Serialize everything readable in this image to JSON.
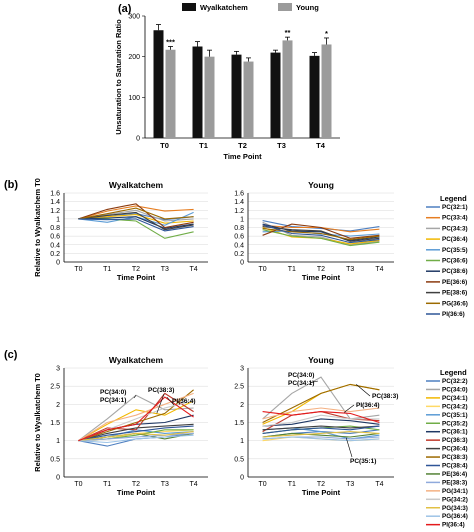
{
  "chart_data": [
    {
      "panel": "(a)",
      "type": "bar",
      "categories": [
        "T0",
        "T1",
        "T2",
        "T3",
        "T4"
      ],
      "xlabel": "Time Point",
      "ylabel": "Unsaturation to Saturation Ratio",
      "ylim": [
        0,
        300
      ],
      "yticks": [
        0,
        100,
        200,
        300
      ],
      "series": [
        {
          "name": "Wyalkatchem",
          "color": "#111111",
          "values": [
            265,
            225,
            205,
            210,
            202
          ],
          "errors": [
            14,
            12,
            8,
            6,
            8
          ]
        },
        {
          "name": "Young",
          "color": "#9b9b9b",
          "values": [
            217,
            200,
            188,
            240,
            230
          ],
          "errors": [
            8,
            16,
            9,
            8,
            16
          ]
        }
      ],
      "significance": [
        "***",
        "",
        "",
        "**",
        "*"
      ]
    },
    {
      "panel": "(b)",
      "type": "line",
      "title_left": "Wyalkatchem",
      "title_right": "Young",
      "categories": [
        "T0",
        "T1",
        "T2",
        "T3",
        "T4"
      ],
      "xlabel": "Time Point",
      "ylabel": "Relative to Wyalkatchem T0",
      "ylim": [
        0,
        1.6
      ],
      "yticks": [
        "0",
        "0.2",
        "0.4",
        "0.6",
        "0.8",
        "1",
        "1.2",
        "1.4",
        "1.6"
      ],
      "legend_title": "Legend",
      "series": [
        {
          "name": "PC(32:1)",
          "color": "#4e7fc0",
          "left": [
            1,
            1.08,
            1.12,
            0.98,
            1.05
          ],
          "right": [
            0.96,
            0.82,
            0.78,
            0.72,
            0.82
          ]
        },
        {
          "name": "PC(33:4)",
          "color": "#e67e22",
          "left": [
            1,
            1.18,
            1.3,
            1.18,
            1.22
          ],
          "right": [
            0.85,
            0.8,
            0.8,
            0.7,
            0.76
          ]
        },
        {
          "name": "PC(34:3)",
          "color": "#a6a6a6",
          "left": [
            1,
            1.1,
            1.2,
            0.95,
            1.0
          ],
          "right": [
            0.92,
            0.62,
            0.58,
            0.4,
            0.48
          ]
        },
        {
          "name": "PC(36:4)",
          "color": "#f2b800",
          "left": [
            1,
            1.05,
            1.1,
            0.9,
            0.95
          ],
          "right": [
            0.8,
            0.58,
            0.55,
            0.42,
            0.5
          ]
        },
        {
          "name": "PC(35:5)",
          "color": "#5b9bd5",
          "left": [
            1,
            0.92,
            1.05,
            0.85,
            1.15
          ],
          "right": [
            0.7,
            0.72,
            0.65,
            0.6,
            0.65
          ]
        },
        {
          "name": "PC(36:6)",
          "color": "#70ad47",
          "left": [
            1,
            1.0,
            0.95,
            0.55,
            0.7
          ],
          "right": [
            0.75,
            0.6,
            0.55,
            0.38,
            0.46
          ]
        },
        {
          "name": "PC(38:6)",
          "color": "#1f3864",
          "left": [
            1,
            1.02,
            1.05,
            0.78,
            0.88
          ],
          "right": [
            0.88,
            0.72,
            0.7,
            0.5,
            0.58
          ]
        },
        {
          "name": "PE(36:6)",
          "color": "#8b3a0f",
          "left": [
            1,
            1.22,
            1.35,
            0.8,
            0.92
          ],
          "right": [
            0.62,
            0.88,
            0.8,
            0.55,
            0.62
          ]
        },
        {
          "name": "PE(38:6)",
          "color": "#404040",
          "left": [
            1,
            1.08,
            1.15,
            0.75,
            0.86
          ],
          "right": [
            0.82,
            0.75,
            0.72,
            0.48,
            0.55
          ]
        },
        {
          "name": "PG(36:6)",
          "color": "#9c6a00",
          "left": [
            1,
            1.12,
            1.25,
            1.0,
            1.05
          ],
          "right": [
            0.78,
            0.7,
            0.66,
            0.52,
            0.6
          ]
        },
        {
          "name": "PI(36:6)",
          "color": "#2e5597",
          "left": [
            1,
            0.98,
            1.0,
            0.72,
            0.82
          ],
          "right": [
            0.86,
            0.66,
            0.62,
            0.45,
            0.52
          ]
        }
      ]
    },
    {
      "panel": "(c)",
      "type": "line",
      "title_left": "Wyalkatchem",
      "title_right": "Young",
      "categories": [
        "T0",
        "T1",
        "T2",
        "T3",
        "T4"
      ],
      "xlabel": "Time Point",
      "ylabel": "Relative to Wyalkatchem T0",
      "ylim": [
        0,
        3
      ],
      "yticks": [
        "0",
        "0.5",
        "1",
        "1.5",
        "2",
        "2.5",
        "3"
      ],
      "legend_title": "Legend",
      "annotations_left": [
        "PC(34:0)",
        "PC(34:1)",
        "PC(38:3)",
        "PI(36:4)"
      ],
      "annotations_right": [
        "PC(34:0)",
        "PC(34:1)",
        "PC(38:3)",
        "PI(36:4)",
        "PC(35:1)"
      ],
      "series": [
        {
          "name": "PC(32:2)",
          "color": "#4e7fc0",
          "left": [
            1,
            0.85,
            1.05,
            1.1,
            1.2
          ],
          "right": [
            1.1,
            1.2,
            1.25,
            1.2,
            1.3
          ]
        },
        {
          "name": "PC(34:0)",
          "color": "#a6a6a6",
          "left": [
            1,
            1.6,
            2.25,
            1.85,
            1.9
          ],
          "right": [
            1.6,
            2.3,
            2.75,
            1.6,
            1.7
          ]
        },
        {
          "name": "PC(34:1)",
          "color": "#f2b800",
          "left": [
            1,
            1.45,
            1.85,
            1.7,
            2.1
          ],
          "right": [
            1.45,
            1.8,
            2.3,
            2.55,
            2.4
          ]
        },
        {
          "name": "PC(34:2)",
          "color": "#ffd966",
          "left": [
            1,
            1.05,
            1.2,
            1.25,
            1.3
          ],
          "right": [
            1.0,
            1.1,
            1.05,
            1.0,
            1.05
          ]
        },
        {
          "name": "PC(35:1)",
          "color": "#5b9bd5",
          "left": [
            1,
            1.1,
            1.3,
            1.2,
            1.25
          ],
          "right": [
            1.3,
            1.35,
            1.25,
            1.05,
            1.15
          ]
        },
        {
          "name": "PC(35:2)",
          "color": "#70ad47",
          "left": [
            1,
            1.05,
            1.15,
            1.3,
            1.3
          ],
          "right": [
            1.2,
            1.3,
            1.35,
            1.4,
            1.3
          ]
        },
        {
          "name": "PC(36:1)",
          "color": "#1f3864",
          "left": [
            1,
            1.3,
            1.45,
            1.5,
            1.7
          ],
          "right": [
            1.4,
            1.45,
            1.6,
            1.55,
            1.45
          ]
        },
        {
          "name": "PC(36:3)",
          "color": "#c0392b",
          "left": [
            1,
            1.35,
            1.3,
            2.3,
            1.8
          ],
          "right": [
            1.25,
            1.7,
            1.8,
            1.6,
            1.55
          ]
        },
        {
          "name": "PC(36:4)",
          "color": "#404040",
          "left": [
            1,
            1.2,
            1.35,
            1.4,
            1.45
          ],
          "right": [
            1.3,
            1.35,
            1.4,
            1.35,
            1.4
          ]
        },
        {
          "name": "PC(38:3)",
          "color": "#9c6a00",
          "left": [
            1,
            1.25,
            1.5,
            1.75,
            2.4
          ],
          "right": [
            1.5,
            1.9,
            2.3,
            2.55,
            2.4
          ]
        },
        {
          "name": "PC(38:4)",
          "color": "#2e5597",
          "left": [
            1,
            1.15,
            1.25,
            1.35,
            1.4
          ],
          "right": [
            1.2,
            1.3,
            1.35,
            1.3,
            1.4
          ]
        },
        {
          "name": "PE(36:4)",
          "color": "#548235",
          "left": [
            1,
            1.1,
            1.2,
            1.05,
            1.2
          ],
          "right": [
            1.1,
            1.2,
            1.15,
            1.1,
            1.2
          ]
        },
        {
          "name": "PE(38:3)",
          "color": "#8faadc",
          "left": [
            1,
            1.05,
            1.1,
            1.15,
            1.2
          ],
          "right": [
            1.05,
            1.1,
            1.1,
            1.05,
            1.1
          ]
        },
        {
          "name": "PG(34:1)",
          "color": "#f4b183",
          "left": [
            1,
            1.5,
            1.7,
            2.0,
            2.3
          ],
          "right": [
            1.6,
            1.8,
            1.9,
            1.8,
            1.9
          ]
        },
        {
          "name": "PG(34:2)",
          "color": "#c9c9c9",
          "left": [
            1,
            1.3,
            1.6,
            1.9,
            2.1
          ],
          "right": [
            1.4,
            1.5,
            1.7,
            1.6,
            1.6
          ]
        },
        {
          "name": "PG(34:3)",
          "color": "#e2c044",
          "left": [
            1,
            1.1,
            1.2,
            1.15,
            1.25
          ],
          "right": [
            1.1,
            1.15,
            1.2,
            1.25,
            1.2
          ]
        },
        {
          "name": "PG(36:4)",
          "color": "#9dc3e6",
          "left": [
            1,
            0.95,
            1.05,
            1.1,
            1.15
          ],
          "right": [
            1.05,
            1.1,
            1.05,
            1.0,
            1.05
          ]
        },
        {
          "name": "PI(36:4)",
          "color": "#e41a1c",
          "left": [
            1,
            1.3,
            1.45,
            2.2,
            1.65
          ],
          "right": [
            1.8,
            1.7,
            1.8,
            1.75,
            1.5
          ]
        }
      ]
    }
  ]
}
